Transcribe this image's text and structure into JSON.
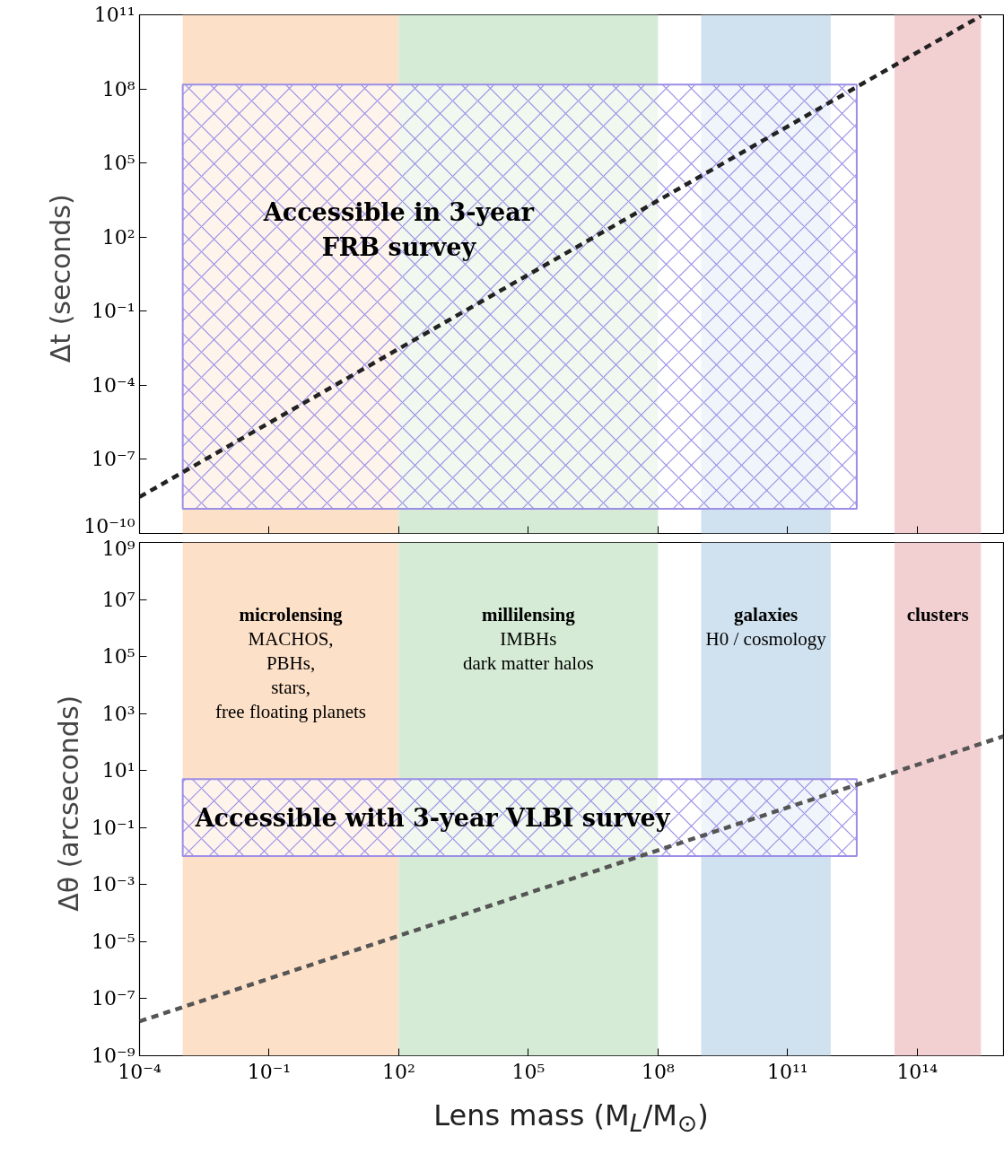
{
  "chart_data": [
    {
      "type": "line",
      "ylabel": "Δt  (seconds)",
      "log": "xy",
      "tick_labels": "y",
      "xlim": [
        0.0001,
        1e+16
      ],
      "ylim": [
        1e-10,
        100000000000.0
      ],
      "xticks": [
        {
          "value": 0.0001,
          "label": null
        },
        {
          "value": 0.1,
          "label": null
        },
        {
          "value": 100,
          "label": null
        },
        {
          "value": 100000,
          "label": null
        },
        {
          "value": 100000000.0,
          "label": null
        },
        {
          "value": 100000000000.0,
          "label": null
        },
        {
          "value": 100000000000000.0,
          "label": null
        }
      ],
      "yticks": [
        {
          "value": 1e-10,
          "label": "10⁻¹⁰"
        },
        {
          "value": 1e-07,
          "label": "10⁻⁷"
        },
        {
          "value": 0.0001,
          "label": "10⁻⁴"
        },
        {
          "value": 0.1,
          "label": "10⁻¹"
        },
        {
          "value": 100,
          "label": "10²"
        },
        {
          "value": 100000,
          "label": "10⁵"
        },
        {
          "value": 100000000.0,
          "label": "10⁸"
        },
        {
          "value": 100000000000.0,
          "label": "10¹¹"
        }
      ],
      "bands": [
        {
          "axis": "x",
          "from": 0.001,
          "to": 100,
          "color": "#fde0c8"
        },
        {
          "axis": "x",
          "from": 100,
          "to": 100000000.0,
          "color": "#d5ebd5"
        },
        {
          "axis": "x",
          "from": 1000000000.0,
          "to": 1000000000000.0,
          "color": "#d0e2ef"
        },
        {
          "axis": "x",
          "from": 30000000000000.0,
          "to": 3000000000000000.0,
          "color": "#f2d0d2"
        }
      ],
      "series": [
        {
          "type": "area",
          "color": "#9b8fe6",
          "x": [
            0.001,
            0.001,
            4000000000000.0,
            4000000000000.0
          ],
          "values": [
            1e-09,
            150000000.0,
            150000000.0,
            1e-09
          ]
        },
        {
          "color": "#222222",
          "line_style": "dashed",
          "x": [
            0.0001,
            3000000000000000.0
          ],
          "values": [
            3e-09,
            90000000000.0
          ]
        }
      ],
      "annotations": [
        {
          "text": "Accessible in 3-year\nFRB survey",
          "x": 100,
          "y": 200
        }
      ]
    },
    {
      "type": "line",
      "ylabel": "Δθ  (arcseconds)",
      "xlabel": "Lens mass (M$_{L}$/M$_{⊙}$)",
      "log": "xy",
      "xlim": [
        0.0001,
        1e+16
      ],
      "ylim": [
        1e-09,
        1000000000.0
      ],
      "xticks": [
        {
          "value": 0.0001,
          "label": "10⁻⁴"
        },
        {
          "value": 0.1,
          "label": "10⁻¹"
        },
        {
          "value": 100,
          "label": "10²"
        },
        {
          "value": 100000,
          "label": "10⁵"
        },
        {
          "value": 100000000.0,
          "label": "10⁸"
        },
        {
          "value": 100000000000.0,
          "label": "10¹¹"
        },
        {
          "value": 100000000000000.0,
          "label": "10¹⁴"
        }
      ],
      "yticks": [
        {
          "value": 1e-09,
          "label": "10⁻⁹"
        },
        {
          "value": 1e-07,
          "label": "10⁻⁷"
        },
        {
          "value": 1e-05,
          "label": "10⁻⁵"
        },
        {
          "value": 0.001,
          "label": "10⁻³"
        },
        {
          "value": 0.1,
          "label": "10⁻¹"
        },
        {
          "value": 10,
          "label": "10¹"
        },
        {
          "value": 1000,
          "label": "10³"
        },
        {
          "value": 100000,
          "label": "10⁵"
        },
        {
          "value": 10000000.0,
          "label": "10⁷"
        },
        {
          "value": 1000000000.0,
          "label": "10⁹"
        }
      ],
      "bands": [
        {
          "axis": "x",
          "from": 0.001,
          "to": 100,
          "color": "#fde0c8",
          "label": "microlensing\nMACHOS,\nPBHs,\nstars,\nfree floating planets"
        },
        {
          "axis": "x",
          "from": 100,
          "to": 100000000.0,
          "color": "#d5ebd5",
          "label": "millilensing\nIMBHs\ndark matter halos"
        },
        {
          "axis": "x",
          "from": 1000000000.0,
          "to": 1000000000000.0,
          "color": "#d0e2ef",
          "label": "galaxies\nH0 / cosmology"
        },
        {
          "axis": "x",
          "from": 30000000000000.0,
          "to": 3000000000000000.0,
          "color": "#f2d0d2",
          "label": "clusters"
        }
      ],
      "series": [
        {
          "type": "area",
          "color": "#9b8fe6",
          "x": [
            0.001,
            0.001,
            4000000000000.0,
            4000000000000.0
          ],
          "values": [
            0.01,
            5,
            5,
            0.01
          ]
        },
        {
          "color": "#555555",
          "line_style": "dashed",
          "x": [
            0.0001,
            1e+16
          ],
          "values": [
            1.6e-08,
            160
          ]
        }
      ],
      "annotations": [
        "Accessible with 3-year VLBI survey"
      ]
    }
  ]
}
